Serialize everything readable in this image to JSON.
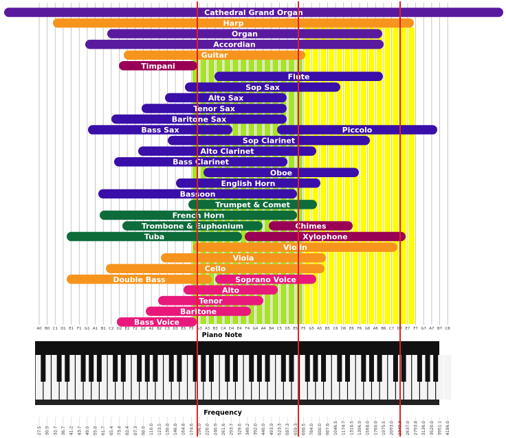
{
  "chart_data": {
    "type": "range-bar",
    "x_axis_label": "Piano Note",
    "frequency_axis_label": "Frequency",
    "notes": [
      "A0",
      "B0",
      "C1",
      "D1",
      "E1",
      "F1",
      "G1",
      "A1",
      "B1",
      "C2",
      "D2",
      "E2",
      "F2",
      "G2",
      "A2",
      "B2",
      "C3",
      "D3",
      "E3",
      "F3",
      "G3",
      "A3",
      "B3",
      "C4",
      "D4",
      "E4",
      "F4",
      "G4",
      "A4",
      "B4",
      "C5",
      "D5",
      "E5",
      "F5",
      "G5",
      "A5",
      "B5",
      "C6",
      "D6",
      "E6",
      "F6",
      "G6",
      "A6",
      "B6",
      "C7",
      "D7",
      "E7",
      "F7",
      "G7",
      "A7",
      "B7",
      "C8"
    ],
    "frequencies": [
      "27.5",
      "30.9",
      "32.7",
      "36.7",
      "41.2",
      "43.7",
      "49.0",
      "55.0",
      "61.7",
      "65.4",
      "73.4",
      "82.4",
      "87.3",
      "98.0",
      "110.0",
      "123.5",
      "130.8",
      "146.8",
      "164.8",
      "174.6",
      "196.0",
      "220.0",
      "246.9",
      "261.6",
      "293.7",
      "329.6",
      "349.2",
      "392.0",
      "440.0",
      "493.9",
      "523.3",
      "587.3",
      "659.3",
      "698.5",
      "784.0",
      "880.0",
      "987.8",
      "1046.5",
      "1174.7",
      "1318.5",
      "1396.9",
      "1568.0",
      "1760.0",
      "1975.5",
      "2093.0",
      "2349.3",
      "2637.0",
      "2793.8",
      "3136.0",
      "3520.0",
      "3951.1",
      "4186.0"
    ],
    "colors": {
      "purple": "#5a1a9e",
      "orange": "#f7941d",
      "blue": "#3a0ea8",
      "maroon": "#990055",
      "green": "#0e6b3a",
      "pink": "#e8197a",
      "green_zone": "#a8e22a",
      "yellow_zone": "#ffff00",
      "red_marker": "#e32020"
    },
    "bars": [
      {
        "label": "Cathedral Grand Organ",
        "color": "purple"
      },
      {
        "label": "Harp",
        "color": "orange"
      },
      {
        "label": "Organ",
        "color": "purple"
      },
      {
        "label": "Accordian",
        "color": "purple"
      },
      {
        "label": "Guitar",
        "color": "orange"
      },
      {
        "label": "Timpani",
        "color": "maroon"
      },
      {
        "label": "Flute",
        "color": "blue"
      },
      {
        "label": "Sop Sax",
        "color": "blue"
      },
      {
        "label": "Alto Sax",
        "color": "blue"
      },
      {
        "label": "Tenor Sax",
        "color": "blue"
      },
      {
        "label": "Baritone Sax",
        "color": "blue"
      },
      {
        "label": "Bass Sax",
        "color": "blue"
      },
      {
        "label": "Piccolo",
        "color": "blue"
      },
      {
        "label": "Sop Clarinet",
        "color": "blue"
      },
      {
        "label": "Alto Clarinet",
        "color": "blue"
      },
      {
        "label": "Bass Clarinet",
        "color": "blue"
      },
      {
        "label": "Oboe",
        "color": "blue"
      },
      {
        "label": "English Horn",
        "color": "blue"
      },
      {
        "label": "Bassoon",
        "color": "blue"
      },
      {
        "label": "Trumpet & Comet",
        "color": "green"
      },
      {
        "label": "French Horn",
        "color": "green"
      },
      {
        "label": "Trombone & Euphonium",
        "color": "green"
      },
      {
        "label": "Chimes",
        "color": "maroon"
      },
      {
        "label": "Tuba",
        "color": "green"
      },
      {
        "label": "Xylophone",
        "color": "maroon"
      },
      {
        "label": "Violin",
        "color": "orange"
      },
      {
        "label": "Viola",
        "color": "orange"
      },
      {
        "label": "Cello",
        "color": "orange"
      },
      {
        "label": "Double Bass",
        "color": "orange"
      },
      {
        "label": "Soprano Voice",
        "color": "pink"
      },
      {
        "label": "Alto",
        "color": "pink"
      },
      {
        "label": "Tenor",
        "color": "pink"
      },
      {
        "label": "Baritone",
        "color": "pink"
      },
      {
        "label": "Bass Voice",
        "color": "pink"
      }
    ]
  }
}
